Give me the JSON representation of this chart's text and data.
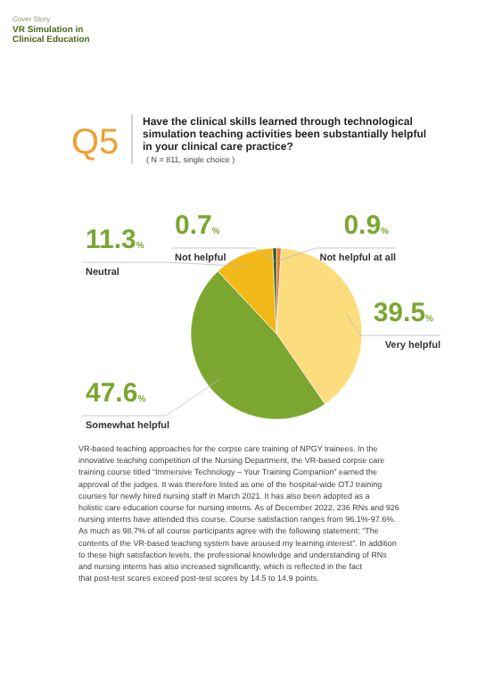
{
  "chart_data": {
    "type": "pie",
    "title": "Have the clinical skills learned through technological simulation teaching activities been substantially helpful in your clinical care practice?",
    "subtitle": "( N = 811, single choice )",
    "categories": [
      "Not helpful at all",
      "Very helpful",
      "Somewhat helpful",
      "Neutral",
      "Not helpful"
    ],
    "values": [
      0.9,
      39.5,
      47.6,
      11.3,
      0.7
    ],
    "value_labels": [
      "0.9%",
      "39.5%",
      "47.6%",
      "11.3%",
      "0.7%"
    ],
    "colors": [
      "#e8782a",
      "#fbdd7e",
      "#7ba731",
      "#f2b918",
      "#2f5a1e"
    ],
    "annotations": [
      "Cover Story",
      "VR Simulation in Clinical Education",
      "Q5",
      "VR-based teaching approaches for the corpse care training of NPGY trainees. In the innovative teaching competition of the Nursing Department, the VR-based corpse care training course titled “Immersive Technology – Your Training Companion” earned the approval of the judges. It was therefore listed as one of the hospital-wide OTJ training courses for newly hired nursing staff in March 2021. It has also been adopted as a holistic care education course for nursing interns. As of December 2022, 236 RNs and 926 nursing interns have attended this course. Course satisfaction ranges from 96.1%-97.6%. As much as 98.7% of all course participants agree with the following statement: “The contents of the VR-based teaching system have aroused my learning interest”. In addition to these high satisfaction levels, the professional knowledge and understanding of RNs and nursing interns has also increased significantly, which is reflected in the fact that post-test scores exceed post-test scores by 14.5 to 14.9 points."
    ]
  }
}
